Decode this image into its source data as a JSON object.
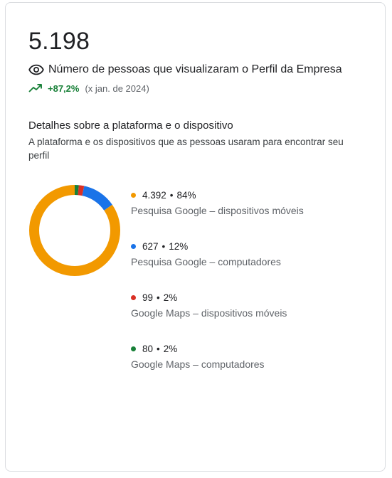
{
  "card": {
    "total": "5.198",
    "metric_label": "Número de pessoas que visualizaram o Perfil da Empresa",
    "trend_value": "+87,2%",
    "trend_compare": "(x jan. de 2024)"
  },
  "section": {
    "title": "Detalhes sobre a plataforma e o dispositivo",
    "description": "A plataforma e os dispositivos que as pessoas usaram para encontrar seu perfil"
  },
  "chart_data": {
    "type": "pie",
    "categories": [
      "Pesquisa Google – dispositivos móveis",
      "Pesquisa Google – computadores",
      "Google Maps – dispositivos móveis",
      "Google Maps – computadores"
    ],
    "values": [
      4392,
      627,
      99,
      80
    ],
    "display_values": [
      "4.392",
      "627",
      "99",
      "80"
    ],
    "percents": [
      "84%",
      "12%",
      "2%",
      "2%"
    ],
    "colors": [
      "#f29900",
      "#1a73e8",
      "#d93025",
      "#188038"
    ]
  },
  "colors": {
    "trend_green": "#188038",
    "text_primary": "#202124",
    "text_secondary": "#5f6368"
  },
  "icons": {
    "metric": "eye-icon",
    "trend": "trending-up-icon"
  }
}
